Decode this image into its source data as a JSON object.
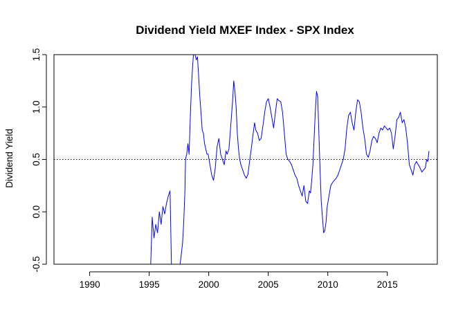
{
  "chart_data": {
    "type": "line",
    "title": "Dividend Yield MXEF Index - SPX Index",
    "xlabel": "",
    "ylabel": "Dividend Yield",
    "xlim": [
      1987.0,
      2019.2
    ],
    "ylim": [
      -0.5,
      1.5
    ],
    "x_ticks": [
      1990,
      1995,
      2000,
      2005,
      2010,
      2015
    ],
    "y_ticks": [
      -0.5,
      0.0,
      0.5,
      1.0,
      1.5
    ],
    "x_tick_labels": [
      "1990",
      "1995",
      "2000",
      "2005",
      "2010",
      "2015"
    ],
    "y_tick_labels": [
      "-0.5",
      "0.0",
      "0.5",
      "1.0",
      "1.5"
    ],
    "grid": false,
    "legend": "none",
    "reference_line": {
      "y": 0.5,
      "style": "dotted",
      "color": "#000000"
    },
    "series": [
      {
        "color": "#0000ff",
        "points": [
          [
            1995.1,
            -0.6
          ],
          [
            1995.25,
            -0.05
          ],
          [
            1995.4,
            -0.25
          ],
          [
            1995.55,
            -0.12
          ],
          [
            1995.7,
            -0.2
          ],
          [
            1995.85,
            0.0
          ],
          [
            1996.0,
            -0.12
          ],
          [
            1996.15,
            0.05
          ],
          [
            1996.3,
            -0.02
          ],
          [
            1996.45,
            0.08
          ],
          [
            1996.6,
            0.15
          ],
          [
            1996.75,
            0.2
          ],
          [
            1996.85,
            -0.4
          ],
          [
            1996.9,
            -0.75
          ],
          [
            1997.1,
            -0.65
          ],
          [
            1997.3,
            -0.7
          ],
          [
            1997.5,
            -0.58
          ],
          [
            1997.65,
            -0.45
          ],
          [
            1997.8,
            -0.3
          ],
          [
            1997.9,
            -0.1
          ],
          [
            1998.0,
            0.2
          ],
          [
            1998.05,
            0.5
          ],
          [
            1998.15,
            0.55
          ],
          [
            1998.25,
            0.65
          ],
          [
            1998.35,
            0.55
          ],
          [
            1998.45,
            0.9
          ],
          [
            1998.55,
            1.2
          ],
          [
            1998.65,
            1.4
          ],
          [
            1998.75,
            1.55
          ],
          [
            1998.85,
            1.5
          ],
          [
            1998.95,
            1.45
          ],
          [
            1999.05,
            1.48
          ],
          [
            1999.15,
            1.3
          ],
          [
            1999.25,
            1.1
          ],
          [
            1999.35,
            0.95
          ],
          [
            1999.45,
            0.78
          ],
          [
            1999.55,
            0.75
          ],
          [
            1999.65,
            0.65
          ],
          [
            1999.75,
            0.6
          ],
          [
            1999.85,
            0.55
          ],
          [
            1999.95,
            0.55
          ],
          [
            2000.1,
            0.45
          ],
          [
            2000.25,
            0.35
          ],
          [
            2000.4,
            0.3
          ],
          [
            2000.55,
            0.42
          ],
          [
            2000.7,
            0.62
          ],
          [
            2000.85,
            0.7
          ],
          [
            2001.0,
            0.55
          ],
          [
            2001.15,
            0.5
          ],
          [
            2001.3,
            0.45
          ],
          [
            2001.45,
            0.58
          ],
          [
            2001.55,
            0.55
          ],
          [
            2001.7,
            0.6
          ],
          [
            2001.8,
            0.75
          ],
          [
            2001.9,
            0.9
          ],
          [
            2002.0,
            1.05
          ],
          [
            2002.1,
            1.25
          ],
          [
            2002.2,
            1.15
          ],
          [
            2002.3,
            1.0
          ],
          [
            2002.4,
            0.75
          ],
          [
            2002.5,
            0.6
          ],
          [
            2002.6,
            0.5
          ],
          [
            2002.7,
            0.45
          ],
          [
            2002.85,
            0.4
          ],
          [
            2003.0,
            0.35
          ],
          [
            2003.15,
            0.32
          ],
          [
            2003.3,
            0.36
          ],
          [
            2003.45,
            0.5
          ],
          [
            2003.55,
            0.58
          ],
          [
            2003.7,
            0.72
          ],
          [
            2003.85,
            0.85
          ],
          [
            2003.95,
            0.78
          ],
          [
            2004.1,
            0.75
          ],
          [
            2004.25,
            0.68
          ],
          [
            2004.4,
            0.7
          ],
          [
            2004.55,
            0.82
          ],
          [
            2004.7,
            0.95
          ],
          [
            2004.85,
            1.05
          ],
          [
            2005.0,
            1.08
          ],
          [
            2005.15,
            1.0
          ],
          [
            2005.3,
            0.9
          ],
          [
            2005.45,
            0.8
          ],
          [
            2005.6,
            0.95
          ],
          [
            2005.75,
            1.08
          ],
          [
            2005.9,
            1.06
          ],
          [
            2006.05,
            1.05
          ],
          [
            2006.2,
            0.95
          ],
          [
            2006.35,
            0.75
          ],
          [
            2006.5,
            0.55
          ],
          [
            2006.65,
            0.5
          ],
          [
            2006.8,
            0.48
          ],
          [
            2006.95,
            0.45
          ],
          [
            2007.1,
            0.4
          ],
          [
            2007.25,
            0.35
          ],
          [
            2007.4,
            0.32
          ],
          [
            2007.55,
            0.25
          ],
          [
            2007.7,
            0.2
          ],
          [
            2007.85,
            0.15
          ],
          [
            2008.0,
            0.25
          ],
          [
            2008.15,
            0.1
          ],
          [
            2008.3,
            0.08
          ],
          [
            2008.45,
            0.2
          ],
          [
            2008.55,
            0.18
          ],
          [
            2008.65,
            0.3
          ],
          [
            2008.75,
            0.45
          ],
          [
            2008.85,
            0.7
          ],
          [
            2008.95,
            0.95
          ],
          [
            2009.05,
            1.15
          ],
          [
            2009.15,
            1.1
          ],
          [
            2009.25,
            0.75
          ],
          [
            2009.35,
            0.4
          ],
          [
            2009.45,
            0.1
          ],
          [
            2009.55,
            -0.05
          ],
          [
            2009.65,
            -0.2
          ],
          [
            2009.75,
            -0.18
          ],
          [
            2009.85,
            -0.1
          ],
          [
            2009.95,
            0.05
          ],
          [
            2010.1,
            0.15
          ],
          [
            2010.25,
            0.25
          ],
          [
            2010.4,
            0.28
          ],
          [
            2010.55,
            0.3
          ],
          [
            2010.7,
            0.32
          ],
          [
            2010.85,
            0.35
          ],
          [
            2011.0,
            0.4
          ],
          [
            2011.15,
            0.45
          ],
          [
            2011.3,
            0.5
          ],
          [
            2011.45,
            0.6
          ],
          [
            2011.6,
            0.8
          ],
          [
            2011.75,
            0.92
          ],
          [
            2011.9,
            0.95
          ],
          [
            2012.05,
            0.85
          ],
          [
            2012.2,
            0.78
          ],
          [
            2012.35,
            0.95
          ],
          [
            2012.5,
            1.07
          ],
          [
            2012.65,
            1.05
          ],
          [
            2012.8,
            0.95
          ],
          [
            2012.95,
            0.8
          ],
          [
            2013.1,
            0.7
          ],
          [
            2013.25,
            0.55
          ],
          [
            2013.4,
            0.52
          ],
          [
            2013.55,
            0.58
          ],
          [
            2013.7,
            0.68
          ],
          [
            2013.85,
            0.72
          ],
          [
            2014.0,
            0.7
          ],
          [
            2014.15,
            0.66
          ],
          [
            2014.3,
            0.75
          ],
          [
            2014.45,
            0.8
          ],
          [
            2014.6,
            0.78
          ],
          [
            2014.75,
            0.82
          ],
          [
            2014.9,
            0.8
          ],
          [
            2015.05,
            0.78
          ],
          [
            2015.2,
            0.8
          ],
          [
            2015.35,
            0.75
          ],
          [
            2015.5,
            0.6
          ],
          [
            2015.65,
            0.72
          ],
          [
            2015.8,
            0.88
          ],
          [
            2015.95,
            0.9
          ],
          [
            2016.1,
            0.95
          ],
          [
            2016.25,
            0.85
          ],
          [
            2016.4,
            0.88
          ],
          [
            2016.55,
            0.8
          ],
          [
            2016.7,
            0.65
          ],
          [
            2016.85,
            0.45
          ],
          [
            2017.0,
            0.4
          ],
          [
            2017.15,
            0.35
          ],
          [
            2017.3,
            0.45
          ],
          [
            2017.45,
            0.48
          ],
          [
            2017.6,
            0.45
          ],
          [
            2017.75,
            0.42
          ],
          [
            2017.9,
            0.38
          ],
          [
            2018.05,
            0.4
          ],
          [
            2018.2,
            0.42
          ],
          [
            2018.3,
            0.5
          ],
          [
            2018.4,
            0.48
          ],
          [
            2018.5,
            0.58
          ]
        ]
      }
    ]
  }
}
